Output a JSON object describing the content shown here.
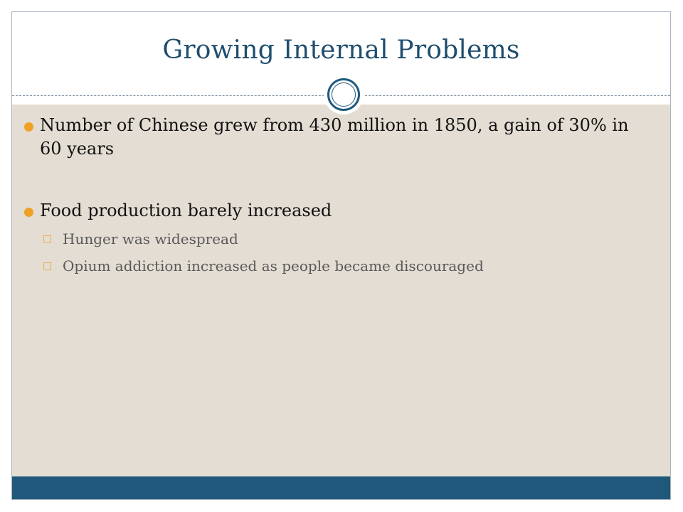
{
  "slide": {
    "title": "Growing Internal Problems",
    "bullets": [
      {
        "text": "Number of Chinese grew from 430 million in 1850, a gain of 30% in 60 years",
        "sub": []
      },
      {
        "text": "Food production barely increased",
        "sub": [
          "Hunger was widespread",
          "Opium addiction increased as people became discouraged"
        ]
      }
    ]
  },
  "colors": {
    "title": "#1f4e6f",
    "content_background": "#e3ddd3",
    "footer_bar": "#1f587a",
    "bullet_accent": "#f0a125",
    "circle_ornament": "#1f5a7e"
  },
  "icons": {
    "level1_bullet": "filled-circle-bullet-icon",
    "level2_bullet": "hollow-box-bullet-icon"
  }
}
